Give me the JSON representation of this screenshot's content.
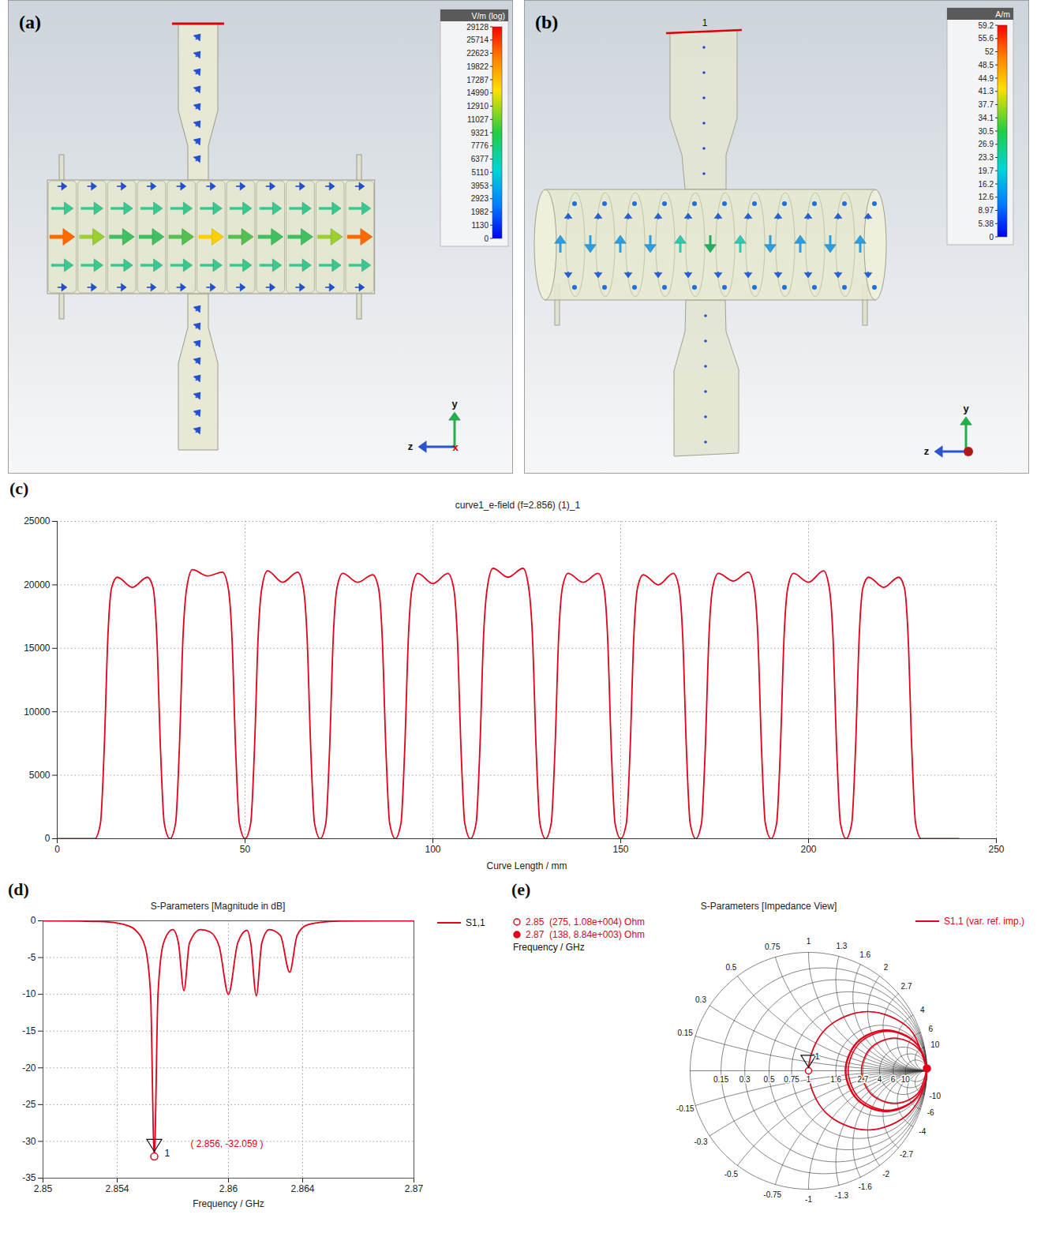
{
  "chart_data": [
    {
      "panel": "(a)",
      "type": "field_map",
      "colorbar": {
        "label": "V/m (log)",
        "ticks": [
          29128,
          25714,
          22623,
          19822,
          17287,
          14990,
          12910,
          11027,
          9321,
          7776,
          6377,
          5110,
          3953,
          2923,
          1982,
          1130,
          0
        ]
      },
      "axis_labels": [
        "y",
        "z",
        "x"
      ]
    },
    {
      "panel": "(b)",
      "type": "field_map",
      "colorbar": {
        "label": "A/m",
        "ticks": [
          59.2,
          55.6,
          52,
          48.5,
          44.9,
          41.3,
          37.7,
          34.1,
          30.5,
          26.9,
          23.3,
          19.7,
          16.2,
          12.6,
          8.97,
          5.38,
          0
        ]
      },
      "axis_labels": [
        "y",
        "z"
      ],
      "port_label": "1"
    },
    {
      "panel": "(c)",
      "type": "line",
      "title": "curve1_e-field (f=2.856) (1)_1",
      "x_label": "Curve Length / mm",
      "x": [
        0,
        10,
        11.5,
        12.5,
        13.5,
        14.5,
        16,
        20,
        24,
        25.5,
        26.5,
        27.5,
        28.5,
        30,
        31.5,
        32.5,
        33.5,
        34.5,
        36,
        40,
        44,
        45.5,
        46.5,
        47.5,
        48.5,
        50,
        51.5,
        52.5,
        53.5,
        54.5,
        56,
        60,
        64,
        65.5,
        66.5,
        67.5,
        68.5,
        70,
        71.5,
        72.5,
        73.5,
        74.5,
        76,
        80,
        84,
        85.5,
        86.5,
        87.5,
        88.5,
        90,
        91.5,
        92.5,
        93.5,
        94.5,
        96,
        100,
        104,
        105.5,
        106.5,
        107.5,
        108.5,
        110,
        111.5,
        112.5,
        113.5,
        114.5,
        116,
        120,
        124,
        125.5,
        126.5,
        127.5,
        128.5,
        130,
        131.5,
        132.5,
        133.5,
        134.5,
        136,
        140,
        144,
        145.5,
        146.5,
        147.5,
        148.5,
        150,
        151.5,
        152.5,
        153.5,
        154.5,
        156,
        160,
        164,
        165.5,
        166.5,
        167.5,
        168.5,
        170,
        171.5,
        172.5,
        173.5,
        174.5,
        176,
        180,
        184,
        185.5,
        186.5,
        187.5,
        188.5,
        190,
        191.5,
        192.5,
        193.5,
        194.5,
        196,
        200,
        204,
        205.5,
        206.5,
        207.5,
        208.5,
        210,
        211.5,
        212.5,
        213.5,
        214.5,
        216,
        220,
        224,
        225.5,
        226.5,
        227.5,
        228.5,
        230,
        240
      ],
      "values": [
        0,
        0,
        1200,
        7000,
        16000,
        19800,
        20600,
        19800,
        20600,
        19800,
        16000,
        7000,
        1200,
        0,
        1200,
        7000,
        16000,
        19800,
        21200,
        20700,
        21000,
        19800,
        16000,
        7000,
        1200,
        0,
        1200,
        7000,
        16000,
        19800,
        21100,
        20200,
        21000,
        19800,
        16000,
        7000,
        1200,
        0,
        1200,
        7000,
        16000,
        19800,
        20900,
        20200,
        20800,
        19800,
        16000,
        7000,
        1200,
        0,
        1200,
        7000,
        16000,
        19800,
        20900,
        20100,
        20900,
        19800,
        16000,
        7000,
        1200,
        0,
        1200,
        7000,
        16000,
        19800,
        21300,
        20600,
        21300,
        19800,
        16000,
        7000,
        1200,
        0,
        1200,
        7000,
        16000,
        19800,
        20900,
        20200,
        20900,
        19800,
        16000,
        7000,
        1200,
        0,
        1200,
        7000,
        16000,
        19800,
        20800,
        20000,
        20900,
        19800,
        16000,
        7000,
        1200,
        0,
        1200,
        7000,
        16000,
        19800,
        20900,
        20300,
        21000,
        19800,
        16000,
        7000,
        1200,
        0,
        1200,
        7000,
        16000,
        19800,
        20900,
        20200,
        21100,
        19800,
        16000,
        7000,
        1200,
        0,
        1200,
        7000,
        16000,
        19800,
        20600,
        19800,
        20600,
        19800,
        16000,
        7000,
        1200,
        0,
        0
      ],
      "color": "#e3001b",
      "xlim": [
        0,
        250
      ],
      "xticks": [
        0,
        50,
        100,
        150,
        200,
        250
      ],
      "ylim": [
        0,
        25000
      ],
      "yticks": [
        0,
        5000,
        10000,
        15000,
        20000,
        25000
      ],
      "grid": true
    },
    {
      "panel": "(d)",
      "type": "line",
      "title": "S-Parameters [Magnitude in dB]",
      "x_label": "Frequency / GHz",
      "x": [
        2.85,
        2.852,
        2.853,
        2.854,
        2.8545,
        2.855,
        2.8555,
        2.8558,
        2.856,
        2.8562,
        2.8565,
        2.857,
        2.8573,
        2.8576,
        2.8579,
        2.8585,
        2.859,
        2.8595,
        2.86,
        2.8605,
        2.861,
        2.8612,
        2.8615,
        2.8618,
        2.8622,
        2.8628,
        2.8633,
        2.8637,
        2.8642,
        2.865,
        2.866,
        2.868,
        2.87
      ],
      "series": [
        {
          "name": "S1,1",
          "color": "#e3001b",
          "values": [
            0,
            -0.05,
            -0.1,
            -0.3,
            -0.6,
            -1.3,
            -3.5,
            -10,
            -32.059,
            -10,
            -3,
            -1.2,
            -3,
            -9.5,
            -3,
            -1.2,
            -1.5,
            -3.5,
            -10,
            -3,
            -1.3,
            -3,
            -10.2,
            -3,
            -1.2,
            -2,
            -7,
            -2,
            -0.6,
            -0.2,
            -0.05,
            0,
            0
          ]
        }
      ],
      "xlim": [
        2.85,
        2.87
      ],
      "xticks": [
        2.85,
        2.854,
        2.86,
        2.864,
        2.87
      ],
      "ylim": [
        -35,
        0
      ],
      "yticks": [
        0,
        -5,
        -10,
        -15,
        -20,
        -25,
        -30,
        -35
      ],
      "grid": true,
      "legend": "right",
      "annotation": {
        "id": "1",
        "x": 2.856,
        "y": -32.059,
        "label": "( 2.856, -32.059 )"
      }
    },
    {
      "panel": "(e)",
      "type": "smith",
      "title": "S-Parameters [Impedance View]",
      "series": [
        {
          "name": "S1,1 (var. ref. imp.)",
          "color": "#e3001b",
          "re": [
            1,
            0.854,
            0.5,
            0.146,
            0,
            0.146,
            0.5,
            0.854,
            1,
            0.903,
            0.668,
            0.432,
            0.335,
            0.432,
            0.668,
            0.903,
            1,
            0.9,
            0.658,
            0.416,
            0.316,
            0.416,
            0.658,
            0.9,
            1,
            0.899,
            0.655,
            0.411,
            0.31,
            0.411,
            0.655,
            0.899,
            1,
            0.919,
            0.724,
            0.528,
            0.447,
            0.528,
            0.724,
            0.919,
            1
          ],
          "im": [
            0,
            0.354,
            0.5,
            0.354,
            0,
            -0.354,
            -0.5,
            -0.354,
            0,
            0.235,
            0.333,
            0.235,
            0,
            -0.235,
            -0.333,
            -0.235,
            0,
            0.242,
            0.342,
            0.242,
            0,
            -0.242,
            -0.342,
            -0.242,
            0,
            0.244,
            0.345,
            0.244,
            0,
            -0.244,
            -0.345,
            -0.244,
            0,
            0.196,
            0.277,
            0.196,
            0,
            -0.196,
            -0.277,
            -0.196,
            0.02
          ]
        }
      ],
      "r_ticks": [
        0.15,
        0.3,
        0.5,
        0.75,
        1,
        1.6,
        2.7,
        4,
        6,
        10
      ],
      "x_ticks": [
        0.15,
        0.3,
        0.5,
        0.75,
        1,
        1.3,
        1.6,
        2,
        2.7,
        4,
        6,
        10,
        -0.15,
        -0.3,
        -0.5,
        -0.75,
        -1,
        -1.3,
        -1.6,
        -2,
        -2.7,
        -4,
        -6,
        -10
      ],
      "markers": [
        {
          "id": "1",
          "re": 0,
          "im": 0
        }
      ],
      "marker_texts": [
        "2.85  (275, 1.08e+004) Ohm",
        "2.87  (138, 8.84e+003) Ohm"
      ],
      "marker_header": "Frequency / GHz",
      "legend": "top-right"
    }
  ]
}
